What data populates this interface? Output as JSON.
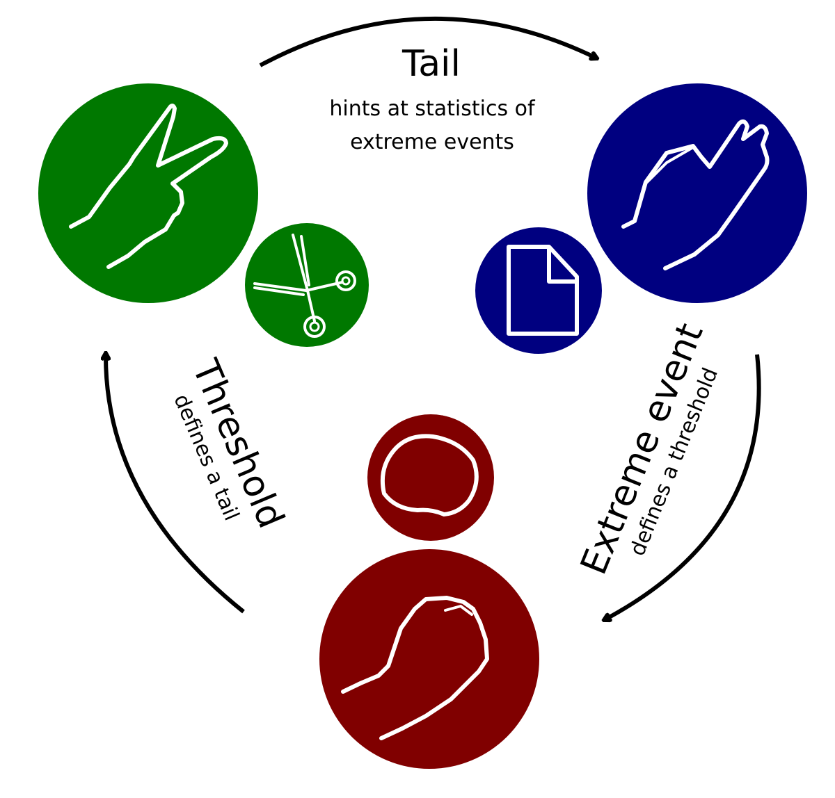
{
  "colors": {
    "scissors": "#007800",
    "paper": "#000080",
    "rock": "#800000",
    "outline": "#ffffff",
    "arrow": "#000000"
  },
  "nodes": [
    {
      "id": "scissors",
      "hand_icon": "v-sign-hand-icon",
      "small_icon": "scissors-icon"
    },
    {
      "id": "paper",
      "hand_icon": "flat-hand-icon",
      "small_icon": "paper-sheet-icon"
    },
    {
      "id": "rock",
      "hand_icon": "fist-hand-icon",
      "small_icon": "rock-icon"
    }
  ],
  "edges": [
    {
      "from": "scissors",
      "to": "paper",
      "title": "Tail",
      "subtitle_lines": [
        "hints at statistics of",
        "extreme events"
      ]
    },
    {
      "from": "paper",
      "to": "rock",
      "title": "Extreme event",
      "subtitle": "defines a threshold"
    },
    {
      "from": "rock",
      "to": "scissors",
      "title": "Threshold",
      "subtitle": "defines a tail"
    }
  ]
}
